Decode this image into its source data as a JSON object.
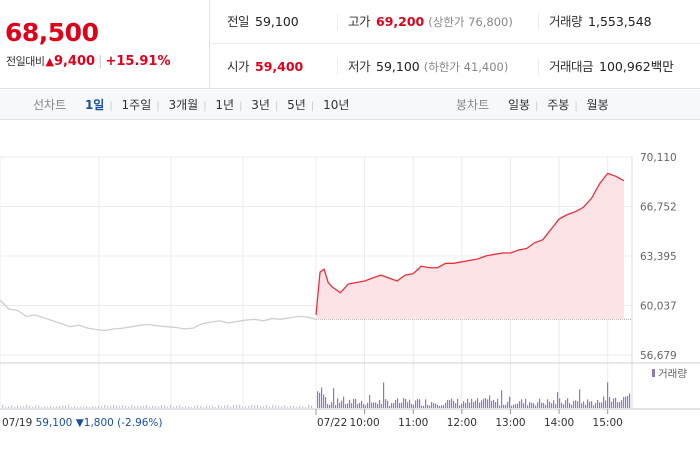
{
  "quote": {
    "price": "68,500",
    "change_label": "전일대비",
    "change_arrow": "▲",
    "change_value": "9,400",
    "change_percent": "+15.91%"
  },
  "stats": {
    "prev_close": {
      "label": "전일",
      "value": "59,100"
    },
    "high": {
      "label": "고가",
      "value": "69,200",
      "limit_label": "(상한가 76,800)"
    },
    "volume": {
      "label": "거래량",
      "value": "1,553,548"
    },
    "open": {
      "label": "시가",
      "value": "59,400"
    },
    "low": {
      "label": "저가",
      "value": "59,100",
      "limit_label": "(하한가 41,400)"
    },
    "amount": {
      "label": "거래대금",
      "value": "100,962",
      "unit": "백만"
    }
  },
  "tabs": {
    "line_title": "선차트",
    "line_items": [
      "1일",
      "1주일",
      "3개월",
      "1년",
      "3년",
      "5년",
      "10년"
    ],
    "line_active": "1일",
    "candle_title": "봉차트",
    "candle_items": [
      "일봉",
      "주봉",
      "월봉"
    ]
  },
  "colors": {
    "up": "#e0001a",
    "down": "#1a4fa8",
    "line_up": "#e8303c",
    "fill_up": "#fde3e5",
    "prev_line": "#cfcfcf",
    "volume_bar": "#8b7bb8"
  },
  "chart_data": {
    "type": "line",
    "y_ticks": [
      "70,110",
      "66,752",
      "63,395",
      "60,037",
      "56,679"
    ],
    "ylim": [
      56679,
      70110
    ],
    "reference_price": 59100,
    "x_labels": [
      "07/22",
      "10:00",
      "11:00",
      "12:00",
      "13:00",
      "14:00",
      "15:00"
    ],
    "prev_day": {
      "date": "07/19",
      "close": "59,100",
      "change_arrow": "▼",
      "change": "1,800",
      "change_percent": "(-2.96%)",
      "values": [
        60400,
        59800,
        59700,
        59300,
        59400,
        59200,
        59000,
        58800,
        58600,
        58700,
        58500,
        58400,
        58350,
        58450,
        58500,
        58600,
        58700,
        58750,
        58650,
        58600,
        58550,
        58450,
        58500,
        58800,
        58900,
        59000,
        58850,
        58950,
        59050,
        59100,
        59000,
        59150,
        59100,
        59200,
        59300,
        59250,
        59100
      ]
    },
    "today": {
      "times": [
        "09:00",
        "09:05",
        "09:10",
        "09:15",
        "09:20",
        "09:30",
        "09:40",
        "09:50",
        "10:00",
        "10:10",
        "10:20",
        "10:30",
        "10:40",
        "10:50",
        "11:00",
        "11:10",
        "11:20",
        "11:30",
        "11:40",
        "11:50",
        "12:00",
        "12:10",
        "12:20",
        "12:30",
        "12:40",
        "12:50",
        "13:00",
        "13:10",
        "13:20",
        "13:30",
        "13:40",
        "13:50",
        "14:00",
        "14:10",
        "14:20",
        "14:30",
        "14:40",
        "14:50",
        "15:00",
        "15:10",
        "15:20"
      ],
      "values": [
        59400,
        62300,
        62500,
        61600,
        61300,
        60900,
        61500,
        61600,
        61700,
        61900,
        62100,
        61900,
        61700,
        62100,
        62200,
        62700,
        62600,
        62600,
        62900,
        62900,
        63000,
        63100,
        63200,
        63400,
        63500,
        63600,
        63600,
        63800,
        63900,
        64300,
        64500,
        65200,
        65900,
        66200,
        66400,
        66700,
        67300,
        68300,
        69000,
        68800,
        68500
      ]
    },
    "volume_label": "거래량"
  }
}
